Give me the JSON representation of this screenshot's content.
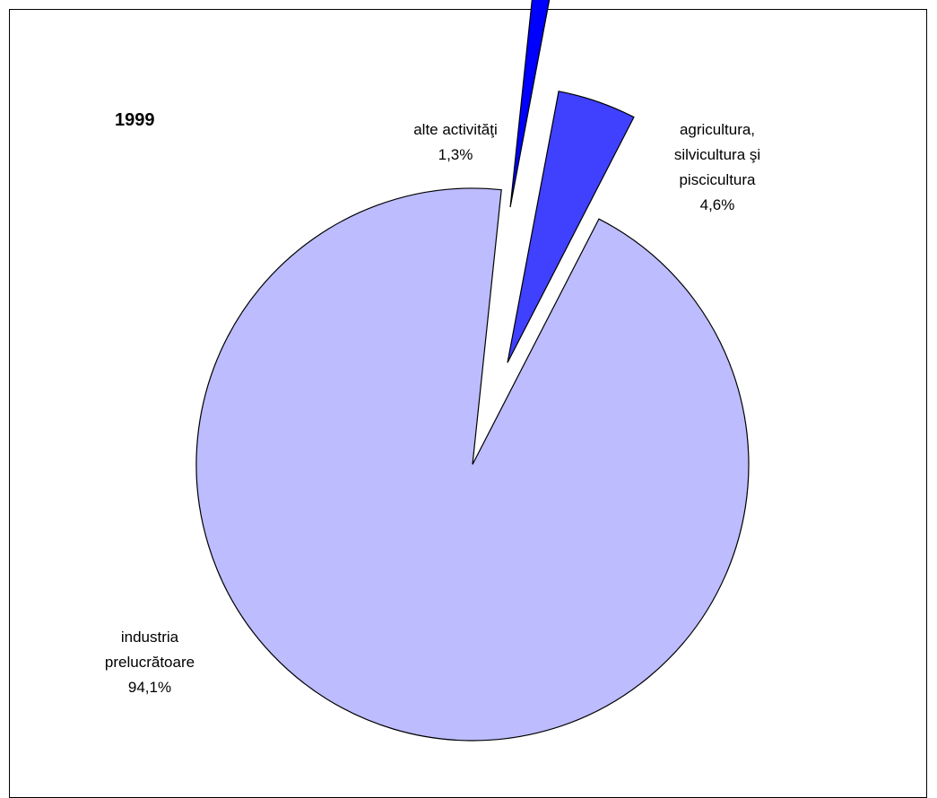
{
  "chart_data": {
    "type": "pie",
    "title": "1999",
    "series": [
      {
        "name": "",
        "slices": [
          {
            "label_lines": [
              "alte activităţi"
            ],
            "value_text": "1,3%",
            "value": 1.3,
            "color": "#0000ff"
          },
          {
            "label_lines": [
              "agricultura,",
              "silvicultura şi",
              "piscicultura"
            ],
            "value_text": "4,6%",
            "value": 4.6,
            "color": "#4040ff"
          },
          {
            "label_lines": [
              "industria",
              "prelucrătoare"
            ],
            "value_text": "94,1%",
            "value": 94.1,
            "color": "#bcbcff"
          }
        ]
      }
    ],
    "exploded": [
      "alte activităţi",
      "agricultura, silvicultura şi piscicultura"
    ],
    "legend": "none"
  }
}
